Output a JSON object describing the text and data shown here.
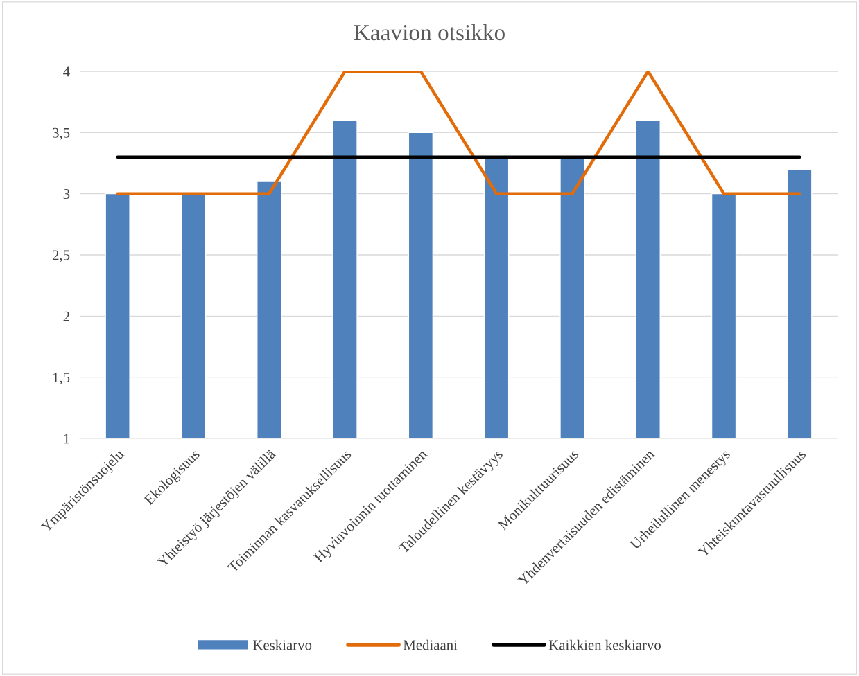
{
  "chart_data": {
    "type": "bar",
    "title": "Kaavion otsikko",
    "categories": [
      "Ympäristönsuojelu",
      "Ekologisuus",
      "Yhteistyö järjestöjen välillä",
      "Toiminnan kasvatuksellisuus",
      "Hyvinvoinnin tuottaminen",
      "Taloudellinen kestävyys",
      "Monikulttuurisuus",
      "Yhdenvertaisuuden edistäminen",
      "Urheilullinen menestys",
      "Yhteiskuntavastuullisuus"
    ],
    "series": [
      {
        "name": "Keskiarvo",
        "color": "#4f81bd",
        "values": [
          3,
          3,
          3.1,
          3.6,
          3.5,
          3.3,
          3.3,
          3.6,
          3,
          3.2
        ]
      },
      {
        "name": "Mediaani",
        "type": "line",
        "color": "#e36c0a",
        "values": [
          3,
          3,
          3,
          4,
          4,
          3,
          3,
          4,
          3,
          3
        ]
      },
      {
        "name": "Kaikkien keskiarvo",
        "type": "line",
        "color": "#000000",
        "values": [
          3.3,
          3.3,
          3.3,
          3.3,
          3.3,
          3.3,
          3.3,
          3.3,
          3.3,
          3.3
        ]
      }
    ],
    "ylim": [
      1,
      4
    ],
    "yticks": [
      1,
      {
        "value": 1.5,
        "label": "1,5"
      },
      2,
      {
        "value": 2.5,
        "label": "2,5"
      },
      3,
      {
        "value": 3.5,
        "label": "3,5"
      },
      4
    ],
    "grid": "y",
    "legend": "bottom"
  }
}
